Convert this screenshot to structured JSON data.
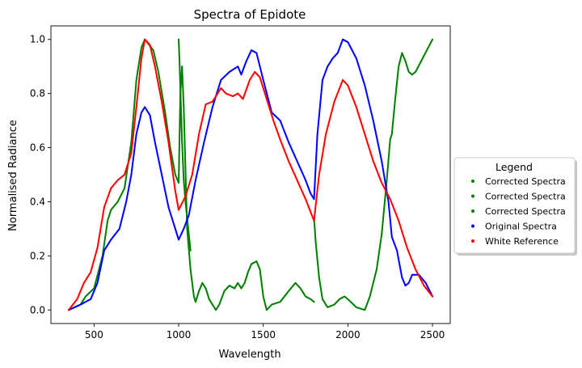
{
  "chart_data": {
    "type": "scatter",
    "title": "Spectra of Epidote",
    "xlabel": "Wavelength",
    "ylabel": "Normalised Radiance",
    "xlim": [
      245,
      2605
    ],
    "ylim": [
      -0.05,
      1.05
    ],
    "xticks": [
      500,
      1000,
      1500,
      2000,
      2500
    ],
    "yticks": [
      0.0,
      0.2,
      0.4,
      0.6,
      0.8,
      1.0
    ],
    "legend": {
      "title": "Legend",
      "placement": "right outside"
    },
    "series": [
      {
        "name": "Corrected Spectra",
        "color": "#008000",
        "points": [
          [
            350,
            0
          ],
          [
            420,
            0.02
          ],
          [
            450,
            0.05
          ],
          [
            500,
            0.08
          ],
          [
            550,
            0.2
          ],
          [
            580,
            0.33
          ],
          [
            600,
            0.37
          ],
          [
            640,
            0.4
          ],
          [
            680,
            0.45
          ],
          [
            720,
            0.62
          ],
          [
            750,
            0.85
          ],
          [
            780,
            0.97
          ],
          [
            800,
            1.0
          ],
          [
            850,
            0.96
          ],
          [
            880,
            0.88
          ],
          [
            920,
            0.73
          ],
          [
            950,
            0.6
          ],
          [
            980,
            0.5
          ],
          [
            1000,
            0.47
          ],
          [
            1010,
            0.8
          ],
          [
            1020,
            0.9
          ],
          [
            1030,
            0.75
          ],
          [
            1050,
            0.3
          ],
          [
            1070,
            0.15
          ],
          [
            1090,
            0.05
          ],
          [
            1100,
            0.03
          ],
          [
            1120,
            0.07
          ],
          [
            1140,
            0.1
          ],
          [
            1160,
            0.08
          ],
          [
            1180,
            0.04
          ],
          [
            1200,
            0.02
          ],
          [
            1220,
            0.0
          ],
          [
            1240,
            0.02
          ],
          [
            1270,
            0.07
          ],
          [
            1300,
            0.09
          ],
          [
            1330,
            0.08
          ],
          [
            1350,
            0.1
          ],
          [
            1370,
            0.08
          ],
          [
            1390,
            0.1
          ],
          [
            1410,
            0.14
          ],
          [
            1430,
            0.17
          ],
          [
            1460,
            0.18
          ],
          [
            1480,
            0.15
          ],
          [
            1500,
            0.05
          ],
          [
            1520,
            0.0
          ],
          [
            1550,
            0.02
          ],
          [
            1600,
            0.03
          ],
          [
            1650,
            0.07
          ],
          [
            1690,
            0.1
          ],
          [
            1720,
            0.08
          ],
          [
            1750,
            0.05
          ],
          [
            1780,
            0.04
          ],
          [
            1800,
            0.03
          ]
        ]
      },
      {
        "name": "Corrected Spectra",
        "color": "#008000",
        "points": [
          [
            1000,
            1.0
          ],
          [
            1005,
            0.92
          ],
          [
            1012,
            0.78
          ],
          [
            1020,
            0.62
          ],
          [
            1030,
            0.48
          ],
          [
            1040,
            0.4
          ],
          [
            1050,
            0.34
          ],
          [
            1070,
            0.22
          ]
        ]
      },
      {
        "name": "Corrected Spectra",
        "color": "#008000",
        "points": [
          [
            1800,
            0.34
          ],
          [
            1810,
            0.25
          ],
          [
            1830,
            0.12
          ],
          [
            1850,
            0.04
          ],
          [
            1880,
            0.01
          ],
          [
            1920,
            0.02
          ],
          [
            1950,
            0.04
          ],
          [
            1980,
            0.05
          ],
          [
            2000,
            0.04
          ],
          [
            2050,
            0.01
          ],
          [
            2100,
            0.0
          ],
          [
            2130,
            0.05
          ],
          [
            2170,
            0.15
          ],
          [
            2200,
            0.28
          ],
          [
            2230,
            0.48
          ],
          [
            2250,
            0.63
          ],
          [
            2260,
            0.65
          ],
          [
            2280,
            0.78
          ],
          [
            2300,
            0.9
          ],
          [
            2320,
            0.95
          ],
          [
            2340,
            0.92
          ],
          [
            2360,
            0.88
          ],
          [
            2380,
            0.87
          ],
          [
            2400,
            0.88
          ],
          [
            2450,
            0.94
          ],
          [
            2500,
            1.0
          ]
        ]
      },
      {
        "name": "Original Spectra",
        "color": "#0000ff",
        "points": [
          [
            350,
            0
          ],
          [
            420,
            0.02
          ],
          [
            480,
            0.04
          ],
          [
            520,
            0.1
          ],
          [
            560,
            0.22
          ],
          [
            600,
            0.26
          ],
          [
            650,
            0.3
          ],
          [
            690,
            0.4
          ],
          [
            720,
            0.5
          ],
          [
            750,
            0.65
          ],
          [
            780,
            0.73
          ],
          [
            800,
            0.75
          ],
          [
            830,
            0.72
          ],
          [
            860,
            0.62
          ],
          [
            900,
            0.5
          ],
          [
            940,
            0.38
          ],
          [
            980,
            0.3
          ],
          [
            1000,
            0.26
          ],
          [
            1030,
            0.3
          ],
          [
            1060,
            0.35
          ],
          [
            1100,
            0.48
          ],
          [
            1150,
            0.62
          ],
          [
            1200,
            0.75
          ],
          [
            1250,
            0.85
          ],
          [
            1300,
            0.88
          ],
          [
            1350,
            0.9
          ],
          [
            1370,
            0.87
          ],
          [
            1400,
            0.92
          ],
          [
            1430,
            0.96
          ],
          [
            1460,
            0.95
          ],
          [
            1500,
            0.85
          ],
          [
            1550,
            0.73
          ],
          [
            1600,
            0.7
          ],
          [
            1650,
            0.62
          ],
          [
            1700,
            0.55
          ],
          [
            1750,
            0.48
          ],
          [
            1780,
            0.43
          ],
          [
            1800,
            0.41
          ],
          [
            1820,
            0.65
          ],
          [
            1850,
            0.85
          ],
          [
            1880,
            0.9
          ],
          [
            1910,
            0.93
          ],
          [
            1940,
            0.95
          ],
          [
            1970,
            1.0
          ],
          [
            2000,
            0.99
          ],
          [
            2050,
            0.93
          ],
          [
            2100,
            0.83
          ],
          [
            2150,
            0.7
          ],
          [
            2200,
            0.55
          ],
          [
            2240,
            0.4
          ],
          [
            2260,
            0.27
          ],
          [
            2290,
            0.22
          ],
          [
            2320,
            0.12
          ],
          [
            2340,
            0.09
          ],
          [
            2360,
            0.1
          ],
          [
            2380,
            0.13
          ],
          [
            2420,
            0.13
          ],
          [
            2460,
            0.1
          ],
          [
            2500,
            0.05
          ]
        ]
      },
      {
        "name": "White Reference",
        "color": "#ff0000",
        "points": [
          [
            350,
            0
          ],
          [
            400,
            0.04
          ],
          [
            440,
            0.1
          ],
          [
            480,
            0.14
          ],
          [
            520,
            0.23
          ],
          [
            560,
            0.38
          ],
          [
            600,
            0.45
          ],
          [
            640,
            0.48
          ],
          [
            680,
            0.5
          ],
          [
            720,
            0.58
          ],
          [
            750,
            0.75
          ],
          [
            780,
            0.93
          ],
          [
            800,
            1.0
          ],
          [
            830,
            0.98
          ],
          [
            860,
            0.9
          ],
          [
            900,
            0.77
          ],
          [
            940,
            0.62
          ],
          [
            980,
            0.44
          ],
          [
            1000,
            0.37
          ],
          [
            1040,
            0.42
          ],
          [
            1080,
            0.5
          ],
          [
            1120,
            0.65
          ],
          [
            1160,
            0.76
          ],
          [
            1200,
            0.77
          ],
          [
            1250,
            0.82
          ],
          [
            1280,
            0.8
          ],
          [
            1320,
            0.79
          ],
          [
            1350,
            0.8
          ],
          [
            1380,
            0.78
          ],
          [
            1420,
            0.85
          ],
          [
            1450,
            0.88
          ],
          [
            1480,
            0.86
          ],
          [
            1520,
            0.78
          ],
          [
            1560,
            0.7
          ],
          [
            1600,
            0.63
          ],
          [
            1650,
            0.55
          ],
          [
            1700,
            0.48
          ],
          [
            1750,
            0.41
          ],
          [
            1800,
            0.33
          ],
          [
            1830,
            0.5
          ],
          [
            1870,
            0.65
          ],
          [
            1920,
            0.77
          ],
          [
            1970,
            0.85
          ],
          [
            2000,
            0.83
          ],
          [
            2050,
            0.75
          ],
          [
            2100,
            0.65
          ],
          [
            2150,
            0.55
          ],
          [
            2200,
            0.47
          ],
          [
            2250,
            0.41
          ],
          [
            2300,
            0.33
          ],
          [
            2350,
            0.23
          ],
          [
            2400,
            0.15
          ],
          [
            2450,
            0.09
          ],
          [
            2500,
            0.05
          ]
        ]
      }
    ]
  }
}
